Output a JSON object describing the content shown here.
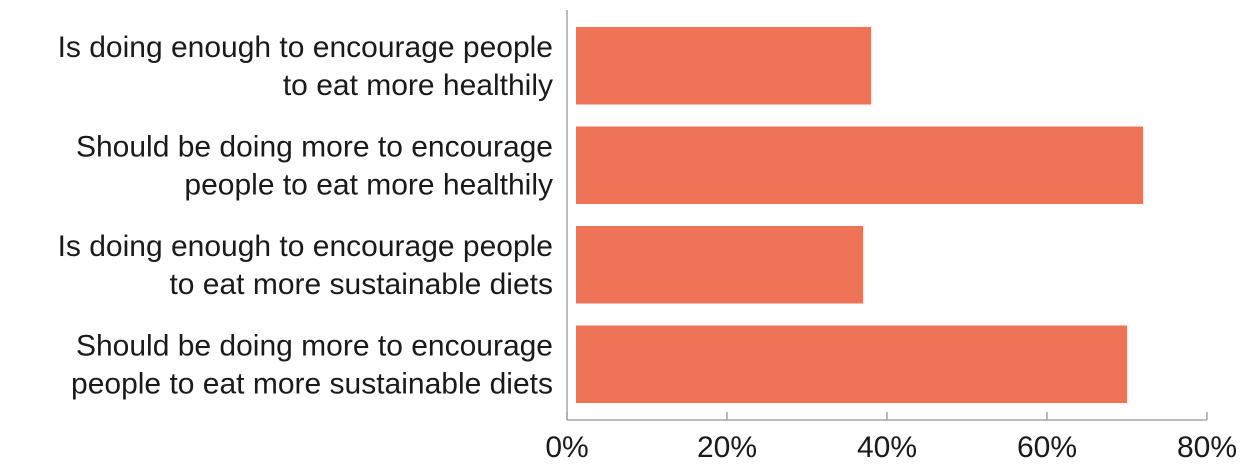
{
  "chart_data": {
    "type": "bar",
    "orientation": "horizontal",
    "categories": [
      [
        "Is doing enough to encourage people",
        "to eat more healthily"
      ],
      [
        "Should be doing more to encourage",
        "people to eat more healthily"
      ],
      [
        "Is doing enough to encourage people",
        "to eat more sustainable diets"
      ],
      [
        "Should be doing more to encourage",
        "people to eat more sustainable diets"
      ]
    ],
    "values": [
      38,
      72,
      37,
      70
    ],
    "xlim": [
      0,
      80
    ],
    "xticks": [
      0,
      20,
      40,
      60,
      80
    ],
    "tick_labels": [
      "0%",
      "20%",
      "40%",
      "60%",
      "80%"
    ],
    "bar_color": "#ee7357",
    "axis_color": "#a6a6a6",
    "grid": false,
    "legend": "none"
  }
}
